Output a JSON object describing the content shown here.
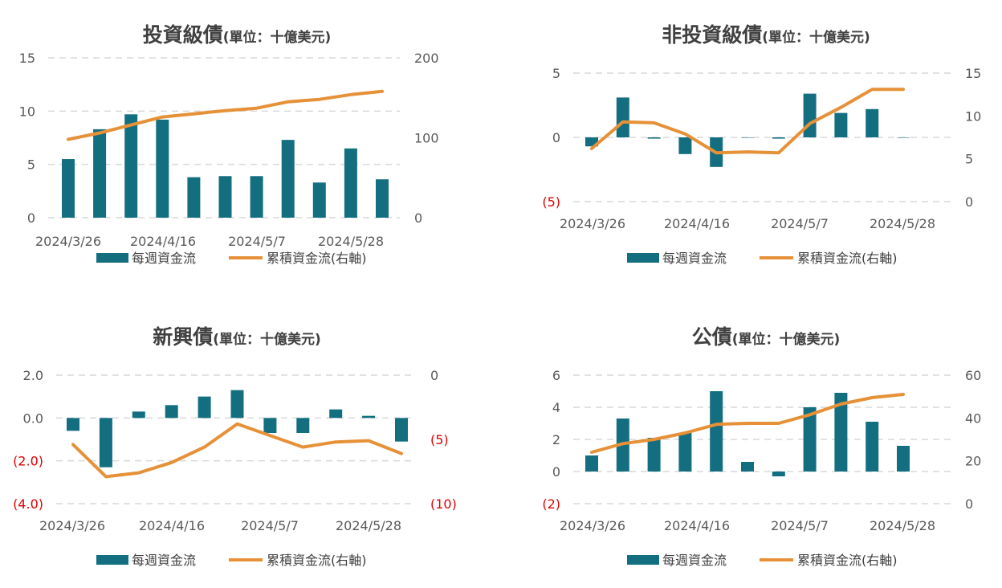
{
  "legend": {
    "bar_label": "每週資金流",
    "line_label": "累積資金流(右軸)"
  },
  "colors": {
    "bar": "#136f80",
    "line": "#e69138",
    "negative_label": "#e00000"
  },
  "chart_data": [
    {
      "type": "bar",
      "title": "投資級債",
      "unit": "(單位：十億美元)",
      "x_ticks": [
        "2024/3/26",
        "2024/4/16",
        "2024/5/7",
        "2024/5/28"
      ],
      "left_axis": {
        "ylim": [
          0,
          15
        ],
        "ticks": [
          "15",
          "10",
          "5",
          "0"
        ]
      },
      "right_axis": {
        "ylim": [
          0,
          200
        ],
        "ticks": [
          "200",
          "100",
          "0"
        ]
      },
      "series": [
        {
          "name": "每週資金流",
          "type": "bar",
          "axis": "left",
          "values": [
            5.5,
            8.3,
            9.7,
            9.2,
            3.8,
            3.9,
            3.9,
            7.3,
            3.3,
            6.5,
            3.6
          ]
        },
        {
          "name": "累積資金流(右軸)",
          "type": "line",
          "axis": "right",
          "values": [
            98,
            106,
            116,
            126,
            130,
            134,
            137,
            145,
            148,
            154,
            158
          ]
        }
      ]
    },
    {
      "type": "bar",
      "title": "非投資級債",
      "unit": "(單位：十億美元)",
      "x_ticks": [
        "2024/3/26",
        "2024/4/16",
        "2024/5/7",
        "2024/5/28"
      ],
      "left_axis": {
        "ylim": [
          -5,
          5
        ],
        "ticks": [
          "5",
          "0",
          "(5)"
        ]
      },
      "right_axis": {
        "ylim": [
          0,
          15
        ],
        "ticks": [
          "15",
          "10",
          "5",
          "0"
        ]
      },
      "series": [
        {
          "name": "每週資金流",
          "type": "bar",
          "axis": "left",
          "values": [
            -0.7,
            3.1,
            -0.1,
            -1.3,
            -2.3,
            0.0,
            -0.1,
            3.4,
            1.9,
            2.2,
            0.0
          ]
        },
        {
          "name": "累積資金流(右軸)",
          "type": "line",
          "axis": "right",
          "values": [
            6.2,
            9.3,
            9.2,
            7.9,
            5.7,
            5.8,
            5.7,
            9.1,
            11.0,
            13.1,
            13.1
          ]
        }
      ]
    },
    {
      "type": "bar",
      "title": "新興債",
      "unit": "(單位：十億美元)",
      "x_ticks": [
        "2024/3/26",
        "2024/4/16",
        "2024/5/7",
        "2024/5/28"
      ],
      "left_axis": {
        "ylim": [
          -4,
          2
        ],
        "ticks": [
          "2.0",
          "0.0",
          "(2.0)",
          "(4.0)"
        ]
      },
      "right_axis": {
        "ylim": [
          -10,
          0
        ],
        "ticks": [
          "0",
          "(5)",
          "(10)"
        ]
      },
      "series": [
        {
          "name": "每週資金流",
          "type": "bar",
          "axis": "left",
          "values": [
            -0.6,
            -2.3,
            0.3,
            0.6,
            1.0,
            1.3,
            -0.7,
            -0.7,
            0.4,
            0.1,
            -1.1
          ]
        },
        {
          "name": "累積資金流(右軸)",
          "type": "line",
          "axis": "right",
          "values": [
            -5.4,
            -7.9,
            -7.6,
            -6.8,
            -5.6,
            -3.8,
            -4.7,
            -5.6,
            -5.2,
            -5.1,
            -6.1
          ]
        }
      ]
    },
    {
      "type": "bar",
      "title": "公債",
      "unit": "(單位：十億美元)",
      "x_ticks": [
        "2024/3/26",
        "2024/4/16",
        "2024/5/7",
        "2024/5/28"
      ],
      "left_axis": {
        "ylim": [
          -2,
          6
        ],
        "ticks": [
          "6",
          "4",
          "2",
          "0",
          "(2)"
        ]
      },
      "right_axis": {
        "ylim": [
          0,
          60
        ],
        "ticks": [
          "60",
          "40",
          "20",
          "0"
        ]
      },
      "series": [
        {
          "name": "每週資金流",
          "type": "bar",
          "axis": "left",
          "values": [
            1.0,
            3.3,
            2.1,
            2.4,
            5.0,
            0.6,
            -0.3,
            4.0,
            4.9,
            3.1,
            1.6
          ]
        },
        {
          "name": "累積資金流(右軸)",
          "type": "line",
          "axis": "right",
          "values": [
            24,
            28,
            30,
            33,
            37,
            37.5,
            37.5,
            41.5,
            46.5,
            49.5,
            51
          ]
        }
      ]
    }
  ]
}
